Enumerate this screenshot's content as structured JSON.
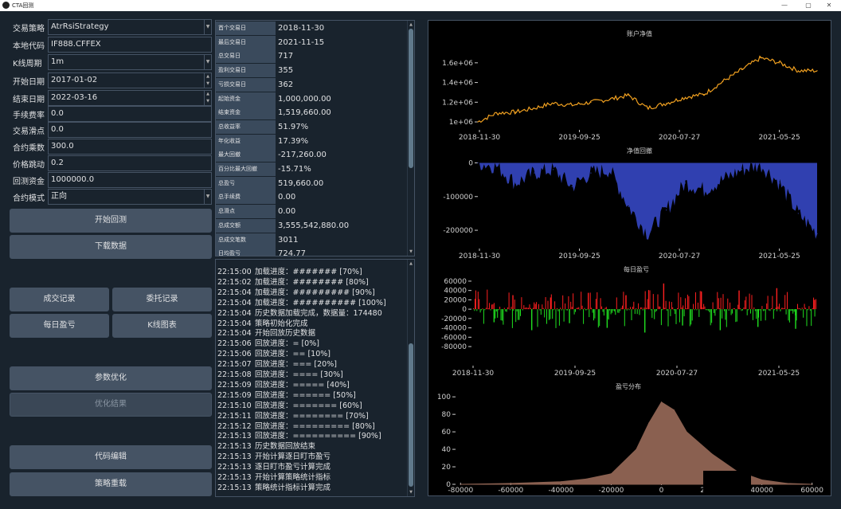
{
  "window": {
    "title": "CTA回测",
    "minimize": "—",
    "maximize": "▢",
    "close": "✕"
  },
  "form": [
    {
      "label": "交易策略",
      "value": "AtrRsiStrategy",
      "kind": "combo"
    },
    {
      "label": "本地代码",
      "value": "IF888.CFFEX",
      "kind": "text"
    },
    {
      "label": "K线周期",
      "value": "1m",
      "kind": "combo"
    },
    {
      "label": "开始日期",
      "value": "2017-01-02",
      "kind": "date"
    },
    {
      "label": "结束日期",
      "value": "2022-03-16",
      "kind": "date"
    },
    {
      "label": "手续费率",
      "value": "0.0",
      "kind": "text"
    },
    {
      "label": "交易滑点",
      "value": "0.0",
      "kind": "text"
    },
    {
      "label": "合约乘数",
      "value": "300.0",
      "kind": "text"
    },
    {
      "label": "价格跳动",
      "value": "0.2",
      "kind": "text"
    },
    {
      "label": "回测资金",
      "value": "1000000.0",
      "kind": "text"
    },
    {
      "label": "合约模式",
      "value": "正向",
      "kind": "combo"
    }
  ],
  "buttons": {
    "start_backtest": "开始回测",
    "download_data": "下载数据",
    "trade_records": "成交记录",
    "order_records": "委托记录",
    "daily_pnl": "每日盈亏",
    "kline_chart": "K线图表",
    "param_optimize": "参数优化",
    "optimize_result": "优化结果",
    "code_edit": "代码编辑",
    "strategy_reload": "策略重载"
  },
  "stats": [
    {
      "key": "首个交易日",
      "value": "2018-11-30"
    },
    {
      "key": "最后交易日",
      "value": "2021-11-15"
    },
    {
      "key": "总交易日",
      "value": "717"
    },
    {
      "key": "盈利交易日",
      "value": "355"
    },
    {
      "key": "亏损交易日",
      "value": "362"
    },
    {
      "key": "起始资金",
      "value": "1,000,000.00"
    },
    {
      "key": "结束资金",
      "value": "1,519,660.00"
    },
    {
      "key": "总收益率",
      "value": "51.97%"
    },
    {
      "key": "年化收益",
      "value": "17.39%"
    },
    {
      "key": "最大回撤",
      "value": "-217,260.00"
    },
    {
      "key": "百分比最大回撤",
      "value": "-15.71%"
    },
    {
      "key": "总盈亏",
      "value": "519,660.00"
    },
    {
      "key": "总手续费",
      "value": "0.00"
    },
    {
      "key": "总滑点",
      "value": "0.00"
    },
    {
      "key": "总成交额",
      "value": "3,555,542,880.00"
    },
    {
      "key": "总成交笔数",
      "value": "3011"
    },
    {
      "key": "日均盈亏",
      "value": "724.77"
    }
  ],
  "log": [
    {
      "time": "22:15:00",
      "text": "加载进度：####### [70%]"
    },
    {
      "time": "22:15:02",
      "text": "加载进度：######## [80%]"
    },
    {
      "time": "22:15:04",
      "text": "加载进度：######### [90%]"
    },
    {
      "time": "22:15:04",
      "text": "加载进度：########## [100%]"
    },
    {
      "time": "22:15:04",
      "text": "历史数据加载完成，数据量：174480"
    },
    {
      "time": "22:15:04",
      "text": "策略初始化完成"
    },
    {
      "time": "22:15:04",
      "text": "开始回放历史数据"
    },
    {
      "time": "22:15:06",
      "text": "回放进度：= [0%]"
    },
    {
      "time": "22:15:06",
      "text": "回放进度：== [10%]"
    },
    {
      "time": "22:15:07",
      "text": "回放进度：=== [20%]"
    },
    {
      "time": "22:15:08",
      "text": "回放进度：==== [30%]"
    },
    {
      "time": "22:15:09",
      "text": "回放进度：===== [40%]"
    },
    {
      "time": "22:15:09",
      "text": "回放进度：====== [50%]"
    },
    {
      "time": "22:15:10",
      "text": "回放进度：======= [60%]"
    },
    {
      "time": "22:15:11",
      "text": "回放进度：======== [70%]"
    },
    {
      "time": "22:15:12",
      "text": "回放进度：========= [80%]"
    },
    {
      "time": "22:15:13",
      "text": "回放进度：========== [90%]"
    },
    {
      "time": "22:15:13",
      "text": "历史数据回放结束"
    },
    {
      "time": "22:15:13",
      "text": "开始计算逐日盯市盈亏"
    },
    {
      "time": "22:15:13",
      "text": "逐日盯市盈亏计算完成"
    },
    {
      "time": "22:15:13",
      "text": "开始计算策略统计指标"
    },
    {
      "time": "22:15:13",
      "text": "策略统计指标计算完成"
    }
  ],
  "colors": {
    "balance_line": "#f0a020",
    "drawdown_fill": "#3040b0",
    "profit_bar": "#ff2020",
    "loss_bar": "#20e020",
    "distribution_fill": "#8a6050"
  },
  "chart_data": [
    {
      "type": "line",
      "title": "账户净值",
      "x_ticks": [
        "2018-11-30",
        "2019-09-25",
        "2020-07-27",
        "2021-05-25"
      ],
      "y_ticks": [
        "1e+06",
        "1.2e+06",
        "1.4e+06",
        "1.6e+06"
      ],
      "ylim": [
        960000,
        1720000
      ],
      "x": [
        "2018-11",
        "2019-01",
        "2019-03",
        "2019-05",
        "2019-07",
        "2019-09",
        "2019-11",
        "2020-01",
        "2020-03",
        "2020-05",
        "2020-07",
        "2020-09",
        "2020-11",
        "2021-01",
        "2021-03",
        "2021-05",
        "2021-07",
        "2021-09",
        "2021-11"
      ],
      "values": [
        1000000,
        1090000,
        1100000,
        1140000,
        1190000,
        1170000,
        1200000,
        1230000,
        1270000,
        1140000,
        1190000,
        1250000,
        1280000,
        1410000,
        1530000,
        1650000,
        1600000,
        1520000,
        1520000
      ]
    },
    {
      "type": "area",
      "title": "净值回撤",
      "x_ticks": [
        "2018-11-30",
        "2019-09-25",
        "2020-07-27",
        "2021-05-25"
      ],
      "y_ticks": [
        "0",
        "-100000",
        "-200000"
      ],
      "ylim": [
        -240000,
        20000
      ],
      "x": [
        "2018-11",
        "2019-01",
        "2019-03",
        "2019-05",
        "2019-07",
        "2019-09",
        "2019-11",
        "2020-01",
        "2020-03",
        "2020-05",
        "2020-07",
        "2020-09",
        "2020-11",
        "2021-01",
        "2021-03",
        "2021-05",
        "2021-07",
        "2021-09",
        "2021-11"
      ],
      "values": [
        0,
        -10000,
        -60000,
        -30000,
        -20000,
        -70000,
        -30000,
        -20000,
        -130000,
        -210000,
        -140000,
        -60000,
        -80000,
        -50000,
        -20000,
        -5000,
        -60000,
        -150000,
        -210000
      ]
    },
    {
      "type": "bar",
      "title": "每日盈亏",
      "x_ticks": [
        "2018-11-30",
        "2019-09-25",
        "2020-07-27",
        "2021-05-25"
      ],
      "y_ticks": [
        "60000",
        "40000",
        "20000",
        "0",
        "-20000",
        "-40000",
        "-60000",
        "-80000"
      ],
      "ylim": [
        -85000,
        65000
      ],
      "x": [
        "2018-11",
        "2019-01",
        "2019-03",
        "2019-05",
        "2019-07",
        "2019-09",
        "2019-11",
        "2020-01",
        "2020-03",
        "2020-05",
        "2020-07",
        "2020-09",
        "2020-11",
        "2021-01",
        "2021-03",
        "2021-05",
        "2021-07",
        "2021-09",
        "2021-11"
      ],
      "values": [
        22000,
        -28000,
        30000,
        -45000,
        25000,
        -30000,
        35000,
        -40000,
        30000,
        -50000,
        55000,
        -35000,
        38000,
        -45000,
        40000,
        -38000,
        45000,
        -42000,
        20000
      ]
    },
    {
      "type": "area",
      "title": "盈亏分布",
      "x_ticks": [
        "-80000",
        "-60000",
        "-40000",
        "-20000",
        "0",
        "20000",
        "40000",
        "60000"
      ],
      "y_ticks": [
        "0",
        "20",
        "40",
        "60",
        "80",
        "100"
      ],
      "xlim": [
        -82000,
        62000
      ],
      "ylim": [
        0,
        102
      ],
      "x": [
        -80000,
        -60000,
        -40000,
        -30000,
        -20000,
        -10000,
        -5000,
        0,
        5000,
        10000,
        20000,
        30000,
        40000,
        50000,
        60000
      ],
      "values": [
        0,
        1,
        3,
        6,
        12,
        40,
        70,
        94,
        85,
        60,
        35,
        15,
        5,
        1,
        0
      ]
    }
  ]
}
